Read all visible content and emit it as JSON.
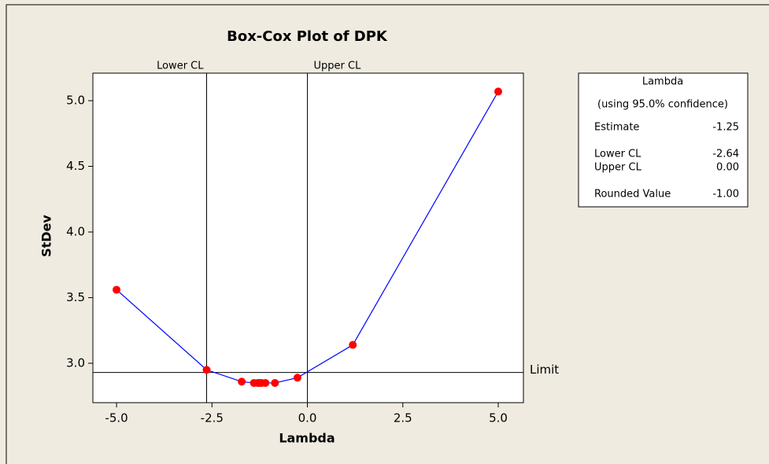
{
  "chart_data": {
    "type": "line",
    "title": "Box-Cox Plot of DPK",
    "x_label": "Lambda",
    "y_label": "StDev",
    "x": [
      -5,
      -2.64,
      -1.72,
      -1.4,
      -1.3,
      -1.25,
      -1.2,
      -1.1,
      -0.85,
      -0.26,
      1.19,
      5
    ],
    "series": [
      {
        "color": "#0000ff",
        "marker_color": "#ff0000",
        "values": [
          3.56,
          2.95,
          2.86,
          2.85,
          2.85,
          2.85,
          2.85,
          2.85,
          2.85,
          2.89,
          3.14,
          5.07
        ]
      }
    ],
    "xlim": [
      -5.62,
      5.66
    ],
    "ylim": [
      2.7,
      5.21
    ],
    "xticks": [
      {
        "value": -5,
        "label": "-5.0"
      },
      {
        "value": -2.5,
        "label": "-2.5"
      },
      {
        "value": 0,
        "label": "0.0"
      },
      {
        "value": 2.5,
        "label": "2.5"
      },
      {
        "value": 5,
        "label": "5.0"
      }
    ],
    "yticks": [
      {
        "value": 3,
        "label": "3.0"
      },
      3.5,
      {
        "value": 4,
        "label": "4.0"
      },
      4.5,
      {
        "value": 5,
        "label": "5.0"
      }
    ],
    "reference_lines": [
      {
        "axis": "x",
        "value": -2.64,
        "label": "Lower CL"
      },
      {
        "axis": "x",
        "value": 0,
        "label": "Upper CL"
      },
      {
        "axis": "y",
        "value": 2.93,
        "label": "Limit"
      }
    ],
    "legend_table": {
      "title": "Lambda",
      "subtitle": "(using 95.0% confidence)",
      "rows": [
        [
          "Estimate",
          "-1.25"
        ],
        [
          "Lower CL",
          "-2.64"
        ],
        [
          "Upper CL",
          "0.00"
        ],
        [
          "Rounded Value",
          "-1.00"
        ]
      ]
    }
  }
}
